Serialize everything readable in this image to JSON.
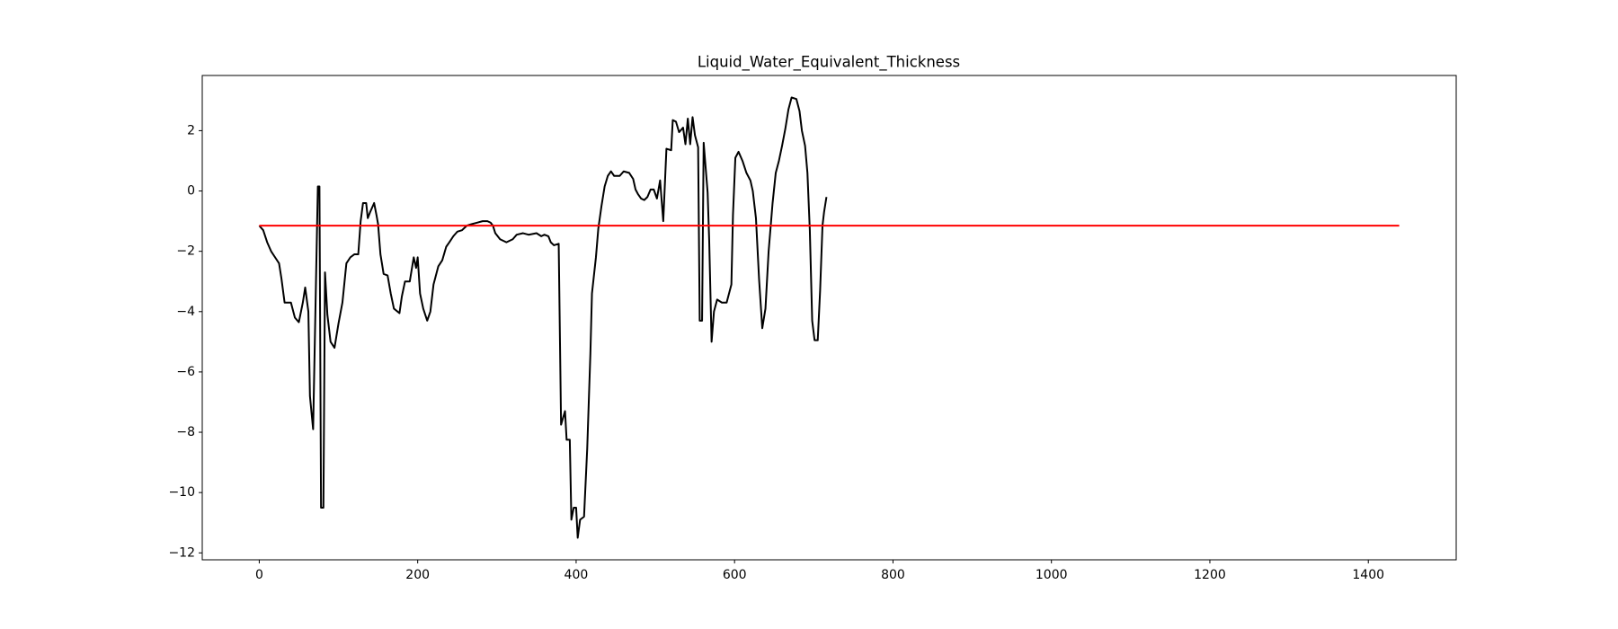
{
  "chart_data": {
    "type": "line",
    "title": "Liquid_Water_Equivalent_Thickness",
    "xlim": [
      -71.95,
      1510.95
    ],
    "ylim": [
      -12.23,
      3.83
    ],
    "xticks": [
      0,
      200,
      400,
      600,
      800,
      1000,
      1200,
      1400
    ],
    "yticks": [
      {
        "value": -12,
        "label": "−12"
      },
      {
        "value": -10,
        "label": "−10"
      },
      {
        "value": -8,
        "label": "−8"
      },
      {
        "value": -6,
        "label": "−6"
      },
      {
        "value": -4,
        "label": "−4"
      },
      {
        "value": -2,
        "label": "−2"
      },
      0,
      2
    ],
    "grid": false,
    "series": [
      {
        "color": "#000000",
        "x": [
          0,
          5,
          10,
          15,
          20,
          25,
          28,
          32,
          40,
          45,
          50,
          55,
          58,
          62,
          64,
          68,
          72,
          74,
          76,
          78,
          81,
          83,
          86,
          90,
          95,
          100,
          105,
          110,
          115,
          120,
          125,
          128,
          131,
          135,
          137,
          140,
          145,
          148,
          150,
          153,
          157,
          162,
          166,
          170,
          177,
          180,
          184,
          190,
          195,
          198,
          200,
          203,
          207,
          212,
          216,
          220,
          226,
          231,
          236,
          240,
          245,
          250,
          256,
          262,
          268,
          275,
          282,
          288,
          292,
          295,
          298,
          304,
          312,
          320,
          325,
          333,
          340,
          350,
          356,
          360,
          365,
          368,
          372,
          378,
          381,
          386,
          388,
          392,
          394,
          397,
          400,
          402,
          405,
          410,
          414,
          418,
          420,
          425,
          428,
          432,
          436,
          440,
          444,
          448,
          455,
          460,
          467,
          472,
          475,
          478,
          482,
          486,
          490,
          494,
          498,
          502,
          506,
          510,
          514,
          520,
          522,
          526,
          530,
          535,
          538,
          541,
          544,
          547,
          550,
          554,
          556,
          559,
          561,
          566,
          568,
          571,
          574,
          578,
          584,
          590,
          596,
          598,
          601,
          605,
          610,
          615,
          620,
          623,
          627,
          631,
          635,
          639,
          643,
          648,
          652,
          656,
          660,
          664,
          668,
          672,
          678,
          682,
          685,
          689,
          692,
          695,
          698,
          701,
          705,
          708,
          711,
          713,
          716
        ],
        "values": [
          -1.15,
          -1.3,
          -1.7,
          -2.0,
          -2.2,
          -2.4,
          -2.9,
          -3.7,
          -3.7,
          -4.2,
          -4.35,
          -3.7,
          -3.2,
          -4.0,
          -6.8,
          -7.9,
          -2.5,
          0.15,
          0.15,
          -10.5,
          -10.5,
          -2.7,
          -4.1,
          -5.0,
          -5.2,
          -4.4,
          -3.7,
          -2.4,
          -2.2,
          -2.1,
          -2.1,
          -1.0,
          -0.4,
          -0.4,
          -0.9,
          -0.7,
          -0.4,
          -0.8,
          -1.1,
          -2.1,
          -2.75,
          -2.8,
          -3.4,
          -3.9,
          -4.05,
          -3.5,
          -3.0,
          -3.0,
          -2.2,
          -2.55,
          -2.2,
          -3.4,
          -3.9,
          -4.3,
          -4.0,
          -3.1,
          -2.5,
          -2.3,
          -1.85,
          -1.7,
          -1.5,
          -1.35,
          -1.3,
          -1.15,
          -1.1,
          -1.05,
          -1.0,
          -1.0,
          -1.05,
          -1.15,
          -1.4,
          -1.6,
          -1.7,
          -1.6,
          -1.45,
          -1.4,
          -1.45,
          -1.4,
          -1.5,
          -1.45,
          -1.5,
          -1.7,
          -1.8,
          -1.75,
          -7.75,
          -7.3,
          -8.25,
          -8.25,
          -10.9,
          -10.5,
          -10.5,
          -11.5,
          -10.9,
          -10.8,
          -8.55,
          -5.4,
          -3.4,
          -2.2,
          -1.25,
          -0.5,
          0.15,
          0.5,
          0.65,
          0.5,
          0.5,
          0.65,
          0.6,
          0.4,
          0.05,
          -0.1,
          -0.25,
          -0.3,
          -0.2,
          0.05,
          0.05,
          -0.25,
          0.35,
          -1.0,
          1.4,
          1.35,
          2.35,
          2.3,
          1.95,
          2.1,
          1.55,
          2.4,
          1.55,
          2.45,
          1.85,
          1.45,
          -4.3,
          -4.3,
          1.6,
          -0.05,
          -1.65,
          -5.0,
          -4.0,
          -3.6,
          -3.7,
          -3.7,
          -3.1,
          -0.8,
          1.1,
          1.3,
          1.0,
          0.6,
          0.35,
          0.0,
          -0.9,
          -2.95,
          -4.55,
          -3.9,
          -2.0,
          -0.4,
          0.6,
          1.0,
          1.5,
          2.05,
          2.7,
          3.1,
          3.05,
          2.65,
          2.0,
          1.5,
          0.6,
          -1.3,
          -4.3,
          -4.95,
          -4.95,
          -3.3,
          -1.15,
          -0.7,
          -0.2
        ]
      },
      {
        "color": "#ff0000",
        "x": [
          0,
          1439
        ],
        "values": [
          -1.15,
          -1.15
        ]
      }
    ]
  }
}
